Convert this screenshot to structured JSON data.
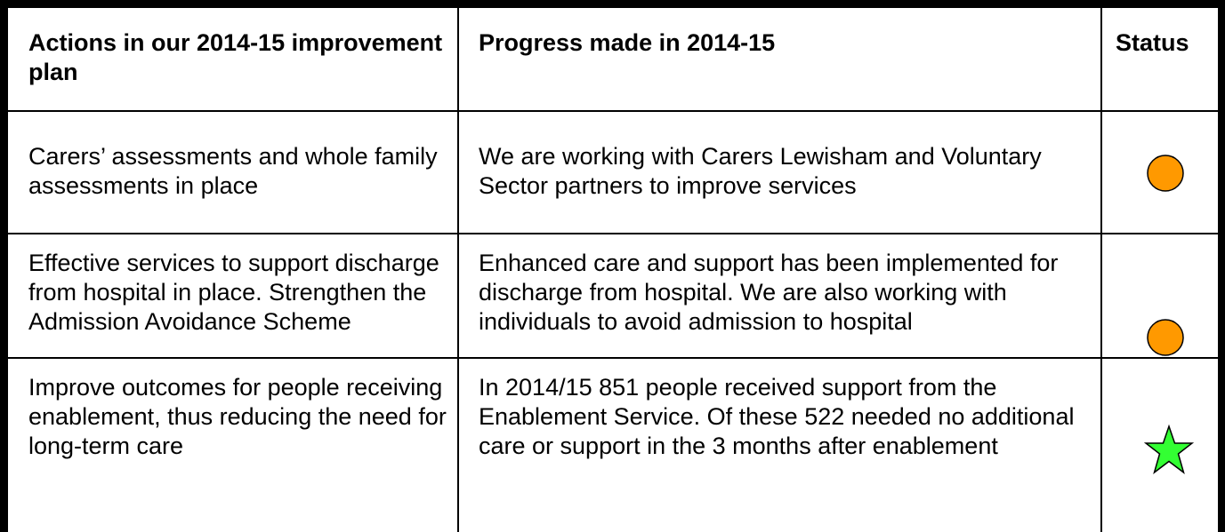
{
  "table": {
    "header": [
      "Actions in our 2014-15 improvement plan",
      "Progress made in 2014-15",
      "Status"
    ],
    "rows": [
      [
        "Carers’ assessments and whole family assessments in place",
        "We are working with Carers Lewisham and Voluntary Sector partners to improve services"
      ],
      [
        "Effective services to support discharge from hospital in place. Strengthen the Admission Avoidance Scheme",
        "Enhanced care and support has been implemented for discharge from hospital. We are also working with individuals to avoid admission to hospital"
      ],
      [
        "Improve outcomes for people receiving enablement, thus reducing the need for long-term care",
        "In 2014/15 851 people received support from the Enablement Service. Of these 522 needed no additional care or support in the 3 months after enablement"
      ]
    ]
  }
}
